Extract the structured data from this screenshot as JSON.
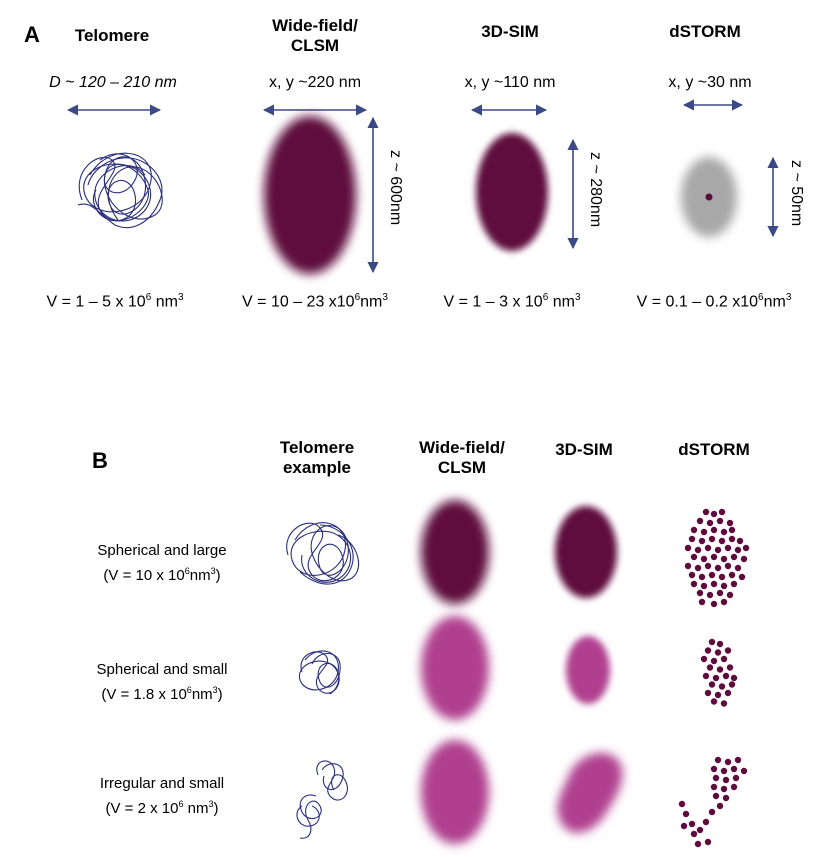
{
  "panel_a": {
    "letter": "A",
    "columns": [
      {
        "title": "Telomere",
        "dimension": "D ~ 120 – 210 nm",
        "volume": "V = 1 – 5 x 10",
        "volume_tail": "nm",
        "vertical": ""
      },
      {
        "title": "Wide-field/\nCLSM",
        "dimension": "x, y ~220 nm",
        "volume": "V = 10 – 23 x10",
        "volume_tail": "nm",
        "vertical": "z ~ 600nm"
      },
      {
        "title": "3D-SIM",
        "dimension": "x, y ~110 nm",
        "volume": "V = 1 – 3 x 10",
        "volume_tail": "nm",
        "vertical": "z ~ 280nm"
      },
      {
        "title": "dSTORM",
        "dimension": "x, y ~30 nm",
        "volume": "V = 0.1 – 0.2 x10",
        "volume_tail": "nm",
        "vertical": "z ~ 50nm"
      }
    ],
    "exponent": "6",
    "unit_exponent": "3"
  },
  "panel_b": {
    "letter": "B",
    "headers": [
      "Telomere\nexample",
      "Wide-field/\nCLSM",
      "3D-SIM",
      "dSTORM"
    ],
    "rows": [
      {
        "label": "Spherical and large",
        "volume": "(V = 10 x 10",
        "volume_tail": "nm"
      },
      {
        "label": "Spherical and small",
        "volume": "(V = 1.8 x 10",
        "volume_tail": "nm"
      },
      {
        "label": "Irregular and small",
        "volume": "(V = 2 x 10",
        "volume_tail": "nm"
      }
    ],
    "exponent": "6",
    "unit_exponent": "3"
  },
  "colors": {
    "arrow": "#3b4a86",
    "dark_blob": "#5e0a3c",
    "light_blob": "#b0408f",
    "grey_blob": "#a8a8a8",
    "dot": "#5e0a3c",
    "coil": "#2a2f7a"
  }
}
